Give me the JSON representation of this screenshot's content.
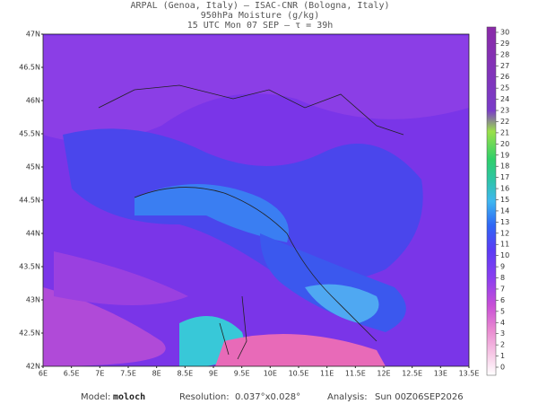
{
  "header": {
    "line1": "ARPAL (Genoa, Italy)  –  ISAC-CNR (Bologna, Italy)",
    "line2": "950hPa Moisture (g/kg)",
    "line3": "15 UTC Mon 07 SEP  –  τ = 39h"
  },
  "map": {
    "lat_labels": [
      "47N",
      "46.5N",
      "46N",
      "45.5N",
      "45N",
      "44.5N",
      "44N",
      "43.5N",
      "43N",
      "42.5N",
      "42N"
    ],
    "lon_labels": [
      "6E",
      "6.5E",
      "7E",
      "7.5E",
      "8E",
      "8.5E",
      "9E",
      "9.5E",
      "10E",
      "10.5E",
      "11E",
      "11.5E",
      "12E",
      "12.5E",
      "13E",
      "13.5E"
    ]
  },
  "colorbar": {
    "ticks": [
      0,
      1,
      2,
      3,
      4,
      5,
      6,
      7,
      8,
      9,
      10,
      11,
      12,
      13,
      14,
      15,
      16,
      17,
      18,
      19,
      20,
      21,
      22,
      23,
      24,
      25,
      26,
      27,
      28,
      29,
      30
    ]
  },
  "footer": {
    "model_label": "Model:",
    "model": "moloch",
    "resolution_label": "Resolution:",
    "resolution": "0.037°x0.028°",
    "analysis_label": "Analysis:",
    "analysis": "Sun 00Z06SEP2026"
  }
}
